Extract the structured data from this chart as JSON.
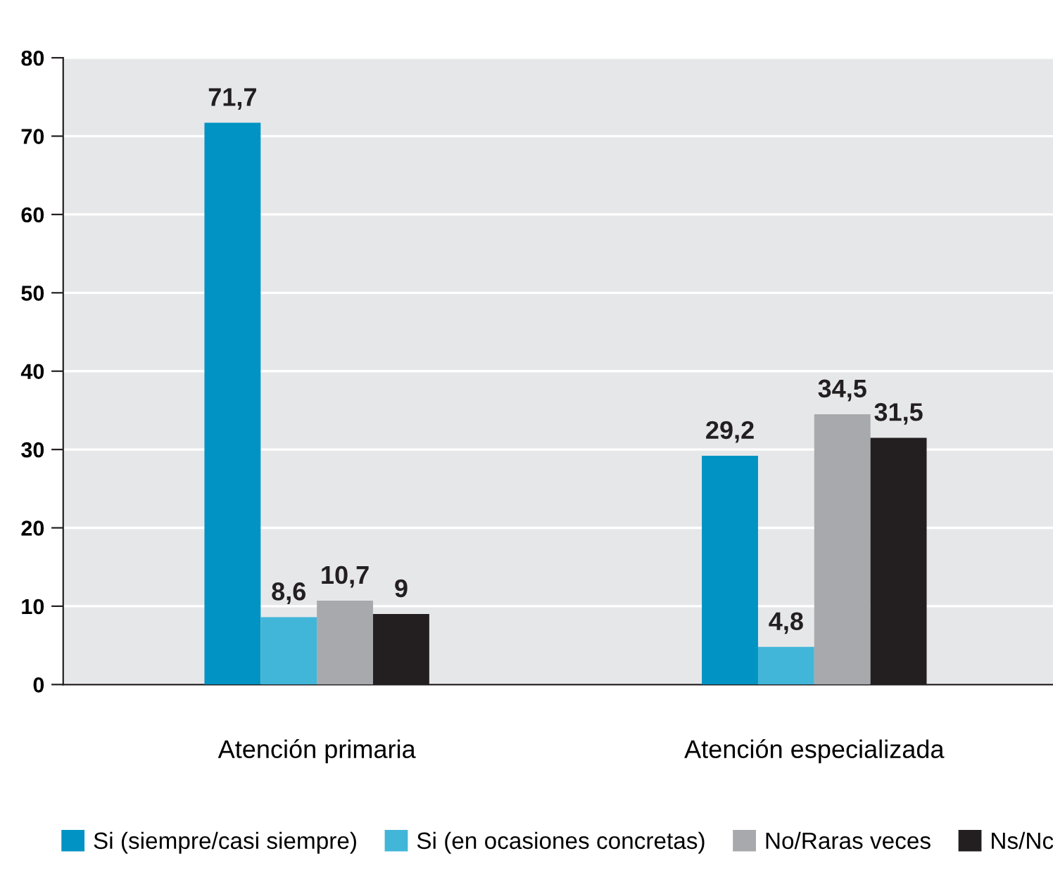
{
  "chart_data": {
    "type": "bar",
    "categories": [
      "Atención primaria",
      "Atención especializada"
    ],
    "series": [
      {
        "name": "Si (siempre/casi siempre)",
        "color": "#0093c4",
        "values": [
          71.7,
          29.2
        ],
        "value_labels": [
          "71,7",
          "29,2"
        ]
      },
      {
        "name": "Si (en ocasiones concretas)",
        "color": "#41b6d8",
        "values": [
          8.6,
          4.8
        ],
        "value_labels": [
          "8,6",
          "4,8"
        ]
      },
      {
        "name": "No/Raras veces",
        "color": "#a7a9ac",
        "values": [
          10.7,
          34.5
        ],
        "value_labels": [
          "10,7",
          "34,5"
        ]
      },
      {
        "name": "Ns/Nc",
        "color": "#231f20",
        "values": [
          9,
          31.5
        ],
        "value_labels": [
          "9",
          "31,5"
        ]
      }
    ],
    "ylim": [
      0,
      80
    ],
    "yticks": [
      0,
      10,
      20,
      30,
      40,
      50,
      60,
      70,
      80
    ],
    "grid": "y",
    "legend": "bottom"
  }
}
